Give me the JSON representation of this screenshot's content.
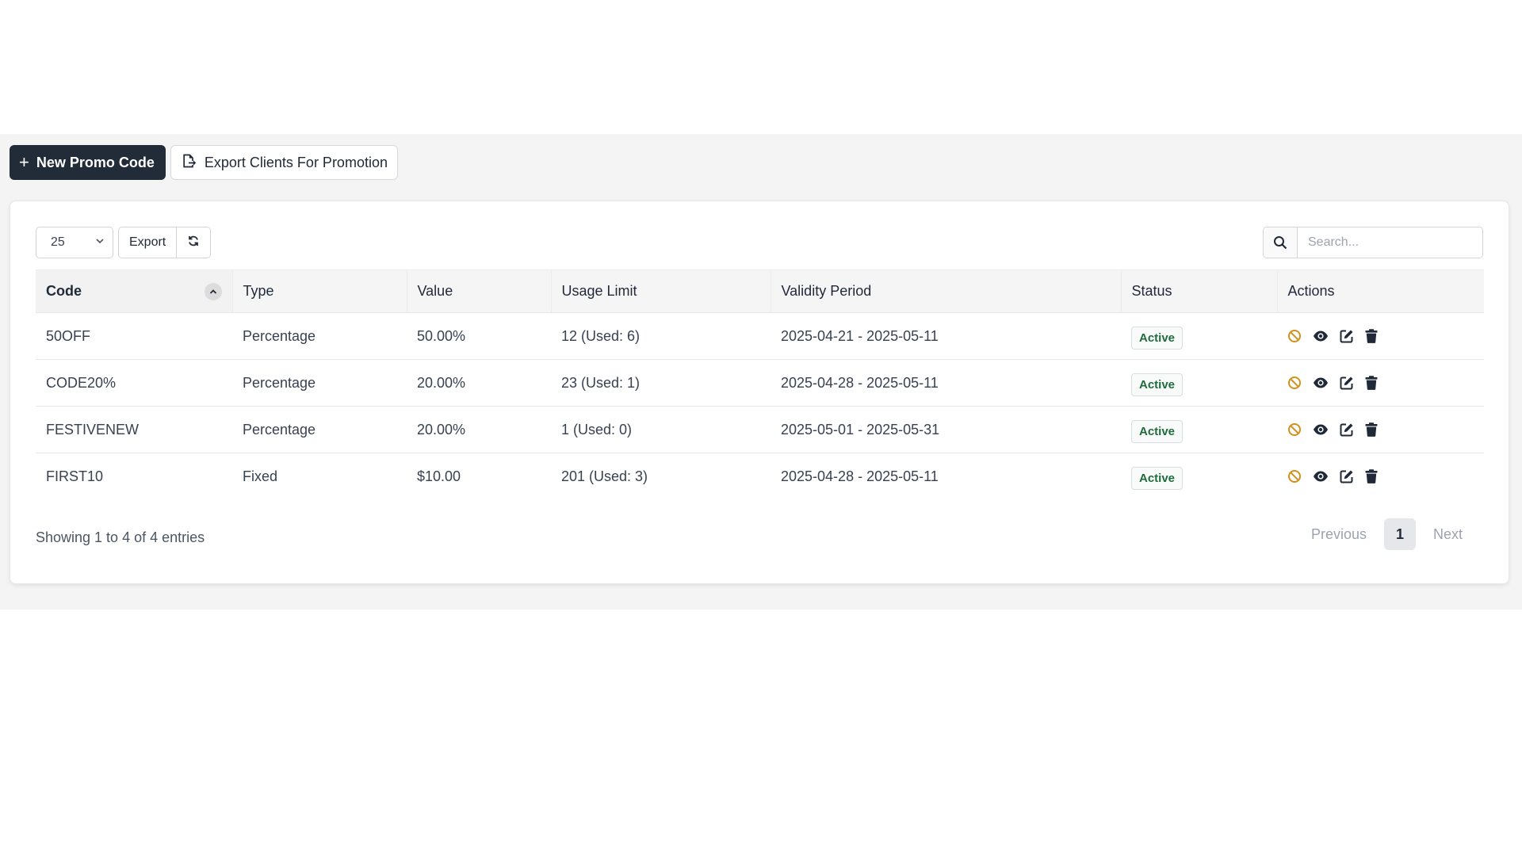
{
  "header": {
    "new_button": "New Promo Code",
    "export_clients_button": "Export Clients For Promotion"
  },
  "toolbar": {
    "page_size": "25",
    "export_label": "Export",
    "search_placeholder": "Search..."
  },
  "table": {
    "columns": [
      "Code",
      "Type",
      "Value",
      "Usage Limit",
      "Validity Period",
      "Status",
      "Actions"
    ],
    "rows": [
      {
        "code": "50OFF",
        "type": "Percentage",
        "value": "50.00%",
        "usage": "12 (Used: 6)",
        "validity": "2025-04-21 - 2025-05-11",
        "status": "Active"
      },
      {
        "code": "CODE20%",
        "type": "Percentage",
        "value": "20.00%",
        "usage": "23 (Used: 1)",
        "validity": "2025-04-28 - 2025-05-11",
        "status": "Active"
      },
      {
        "code": "FESTIVENEW",
        "type": "Percentage",
        "value": "20.00%",
        "usage": "1 (Used: 0)",
        "validity": "2025-05-01 - 2025-05-31",
        "status": "Active"
      },
      {
        "code": "FIRST10",
        "type": "Fixed",
        "value": "$10.00",
        "usage": "201 (Used: 3)",
        "validity": "2025-04-28 - 2025-05-11",
        "status": "Active"
      }
    ]
  },
  "footer": {
    "info": "Showing 1 to 4 of 4 entries",
    "previous": "Previous",
    "current_page": "1",
    "next": "Next"
  },
  "icons": {
    "disable": "ban-icon",
    "view": "eye-icon",
    "edit": "edit-icon",
    "delete": "trash-icon"
  },
  "colors": {
    "primary_button": "#222b38",
    "active_badge_text": "#1f6b3c",
    "disable_icon": "#d4901a"
  }
}
